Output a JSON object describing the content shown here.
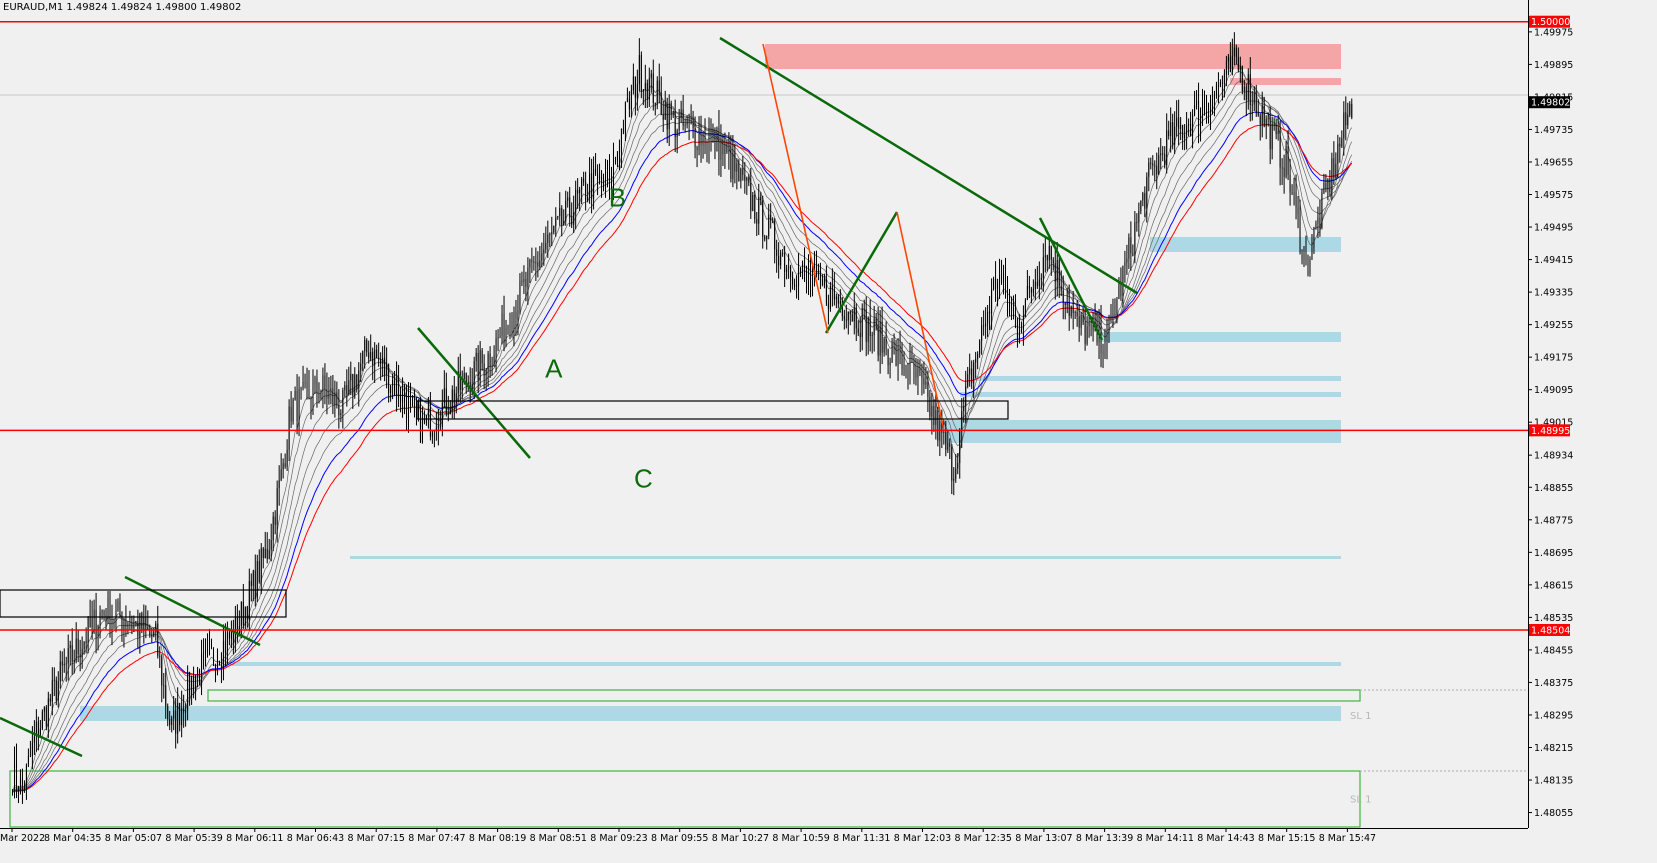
{
  "header": {
    "symbol_info": "EURAUD,M1  1.49824 1.49824 1.49800 1.49802"
  },
  "colors": {
    "background": "#f0f0f0",
    "candles": "#000000",
    "red_line": "#ff0000",
    "blue_zone": "#add8e6",
    "pink_zone": "#f4a6a6",
    "trendline": "#0a6a0a",
    "impulse": "#ff4500",
    "ma_red": "#ff0000",
    "ma_blue": "#0000ff",
    "ma_gray": "#666666"
  },
  "chart_data": {
    "type": "candlestick",
    "ylim": [
      1.48017,
      1.50046
    ],
    "y_ticks": [
      "1.49975",
      "1.49895",
      "1.49815",
      "1.49735",
      "1.49655",
      "1.49575",
      "1.49495",
      "1.49415",
      "1.49335",
      "1.49255",
      "1.49175",
      "1.49095",
      "1.49015",
      "1.48934",
      "1.48855",
      "1.48775",
      "1.48695",
      "1.48615",
      "1.48535",
      "1.48455",
      "1.48375",
      "1.48295",
      "1.48215",
      "1.48135",
      "1.48055"
    ],
    "x_ticks": [
      "Mar 2022",
      "8 Mar 04:35",
      "8 Mar 05:07",
      "8 Mar 05:39",
      "8 Mar 06:11",
      "8 Mar 06:43",
      "8 Mar 07:15",
      "8 Mar 07:47",
      "8 Mar 08:19",
      "8 Mar 08:51",
      "8 Mar 09:23",
      "8 Mar 09:55",
      "8 Mar 10:27",
      "8 Mar 10:59",
      "8 Mar 11:31",
      "8 Mar 12:03",
      "8 Mar 12:35",
      "8 Mar 13:07",
      "8 Mar 13:39",
      "8 Mar 14:11",
      "8 Mar 14:43",
      "8 Mar 15:15",
      "8 Mar 15:47"
    ],
    "horizontal_levels": [
      {
        "price": 1.5,
        "label": "1.50000",
        "color": "#ff0000"
      },
      {
        "price": 1.48995,
        "label": "1.48995",
        "color": "#ff0000"
      },
      {
        "price": 1.48504,
        "label": "1.48504",
        "color": "#ff0000"
      }
    ],
    "current_price": {
      "price": 1.49802,
      "label": "1.49802"
    },
    "wave_labels": [
      {
        "text": "A",
        "time_index": 272,
        "price": 1.49125
      },
      {
        "text": "B",
        "time_index": 304,
        "price": 1.49545
      },
      {
        "text": "C",
        "time_index": 317,
        "price": 1.48855
      }
    ],
    "sl_labels": [
      {
        "text": "SL 1",
        "price": 1.48295
      },
      {
        "text": "SL 1",
        "price": 1.4809
      }
    ],
    "anchors": [
      [
        0,
        1.4815
      ],
      [
        5,
        1.4811
      ],
      [
        12,
        1.4825
      ],
      [
        25,
        1.484
      ],
      [
        45,
        1.4855
      ],
      [
        58,
        1.4853
      ],
      [
        72,
        1.4848
      ],
      [
        78,
        1.483
      ],
      [
        80,
        1.4826
      ],
      [
        90,
        1.4838
      ],
      [
        112,
        1.485
      ],
      [
        128,
        1.487
      ],
      [
        135,
        1.4888
      ],
      [
        140,
        1.4905
      ],
      [
        155,
        1.491
      ],
      [
        166,
        1.4905
      ],
      [
        179,
        1.492
      ],
      [
        196,
        1.4908
      ],
      [
        206,
        1.49
      ],
      [
        240,
        1.4918
      ],
      [
        268,
        1.4945
      ],
      [
        290,
        1.496
      ],
      [
        300,
        1.496
      ],
      [
        307,
        1.4975
      ],
      [
        315,
        1.4988
      ],
      [
        333,
        1.4975
      ],
      [
        355,
        1.497
      ],
      [
        390,
        1.494
      ],
      [
        420,
        1.493
      ],
      [
        455,
        1.4912
      ],
      [
        465,
        1.49
      ],
      [
        473,
        1.489
      ],
      [
        480,
        1.491
      ],
      [
        495,
        1.4938
      ],
      [
        505,
        1.4925
      ],
      [
        520,
        1.4945
      ],
      [
        535,
        1.4925
      ],
      [
        550,
        1.4922
      ],
      [
        570,
        1.496
      ],
      [
        580,
        1.497
      ],
      [
        600,
        1.498
      ],
      [
        615,
        1.499
      ],
      [
        630,
        1.4975
      ],
      [
        640,
        1.4965
      ],
      [
        650,
        1.494
      ],
      [
        667,
        1.497
      ],
      [
        673,
        1.498
      ]
    ]
  }
}
